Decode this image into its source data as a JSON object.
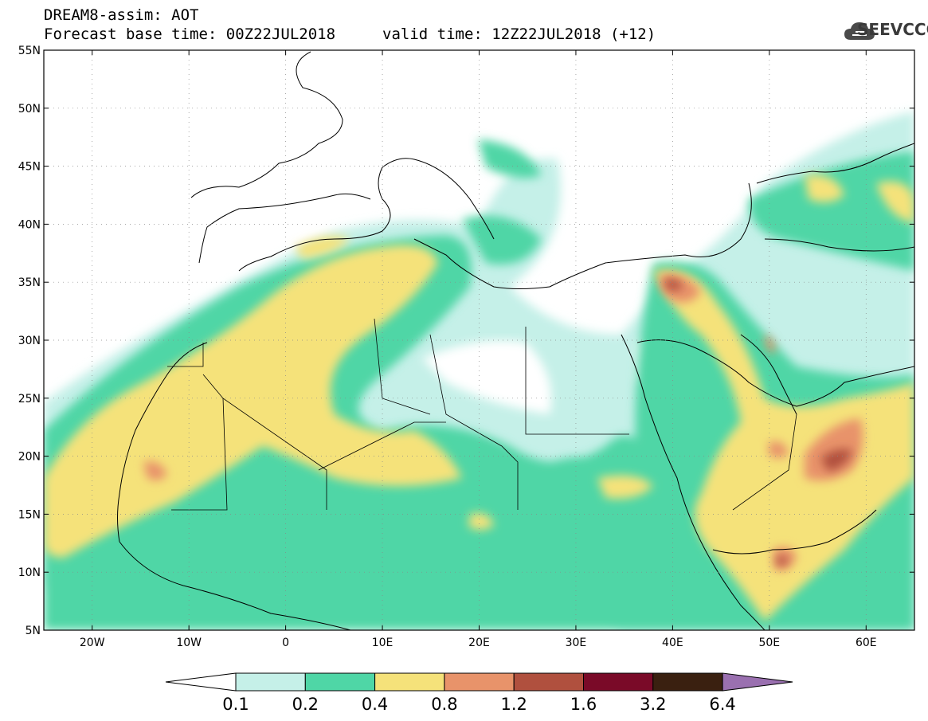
{
  "header": {
    "line1": "DREAM8-assim: AOT",
    "line2": "Forecast base time: 00Z22JUL2018",
    "valid": "valid time: 12Z22JUL2018 (+12)",
    "logo_text": "SEEVCCC"
  },
  "axes": {
    "lat_labels": [
      "55N",
      "50N",
      "45N",
      "40N",
      "35N",
      "30N",
      "25N",
      "20N",
      "15N",
      "10N",
      "5N"
    ],
    "lat_values": [
      55,
      50,
      45,
      40,
      35,
      30,
      25,
      20,
      15,
      10,
      5
    ],
    "lon_labels": [
      "20W",
      "10W",
      "0",
      "10E",
      "20E",
      "30E",
      "40E",
      "50E",
      "60E"
    ],
    "lon_values": [
      -20,
      -10,
      0,
      10,
      20,
      30,
      40,
      50,
      60
    ],
    "lon_range": [
      -25,
      65
    ],
    "lat_range": [
      5,
      55
    ],
    "grid": "dotted"
  },
  "colorbar": {
    "levels": [
      "0.1",
      "0.2",
      "0.4",
      "0.8",
      "1.2",
      "1.6",
      "3.2",
      "6.4"
    ],
    "colors": [
      "#c5f0e8",
      "#4fd6a6",
      "#f5e27a",
      "#e8936a",
      "#b0503e",
      "#7a0a28",
      "#3a2010",
      "#9a70b0"
    ]
  }
}
